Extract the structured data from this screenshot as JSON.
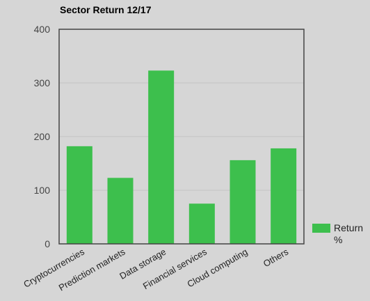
{
  "chart_data": {
    "type": "bar",
    "title": "Sector Return 12/17",
    "categories": [
      "Cryptocurrencies",
      "Prediction markets",
      "Data storage",
      "Financial services",
      "Cloud computing",
      "Others"
    ],
    "series": [
      {
        "name": "Return %",
        "values": [
          182,
          123,
          323,
          75,
          156,
          178
        ],
        "color": "#3dbf4d"
      }
    ],
    "ylim": [
      0,
      400
    ],
    "yticks": [
      0,
      100,
      200,
      300,
      400
    ],
    "xlabel": "",
    "ylabel": "",
    "grid": true,
    "legend_position": "right-bottom",
    "legend_lines": [
      "Return",
      "%"
    ]
  }
}
